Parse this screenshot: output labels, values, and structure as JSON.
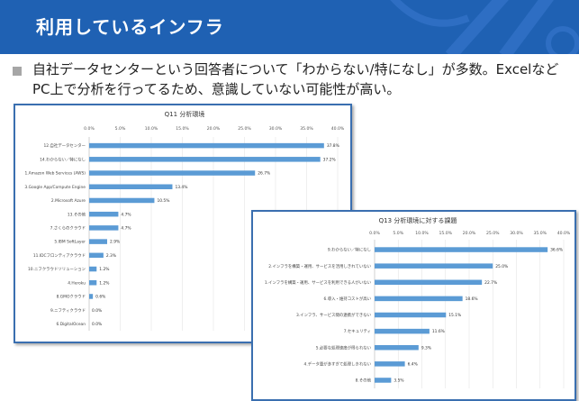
{
  "header": {
    "title": "利用しているインフラ"
  },
  "body": {
    "text": "自社データセンターという回答者について「わからない/特になし」が多数。ExcelなどPC上で分析を行ってるため、意識していない可能性が高い。"
  },
  "colors": {
    "header_bg": "#1f61b3",
    "bar": "#5b9bd5",
    "panel_border": "#3a6fb0"
  },
  "chart_data": [
    {
      "type": "bar",
      "orientation": "horizontal",
      "title": "Q11 分析環境",
      "xlim": [
        0,
        40
      ],
      "ticks": [
        "0.0%",
        "5.0%",
        "10.0%",
        "15.0%",
        "20.0%",
        "25.0%",
        "30.0%",
        "35.0%",
        "40.0%"
      ],
      "categories": [
        "12.自社データセンター",
        "14.わからない／特になし",
        "1.Amazon Web Services (AWS)",
        "3.Google App/Compute Engine",
        "2.Microsoft Azure",
        "13.その他",
        "7.さくらのクラウド",
        "5.IBM SoftLayer",
        "11.IDCフロンティアクラウド",
        "10.ニフクラウドソリューション",
        "4.Heroku",
        "8.GMOクラウド",
        "9.ニフティクラウド",
        "6.DigitalOcean"
      ],
      "values": [
        37.8,
        37.2,
        26.7,
        13.4,
        10.5,
        4.7,
        4.7,
        2.9,
        2.3,
        1.2,
        1.2,
        0.6,
        0.0,
        0.0
      ],
      "labels": [
        "37.8%",
        "37.2%",
        "26.7%",
        "13.4%",
        "10.5%",
        "4.7%",
        "4.7%",
        "2.9%",
        "2.3%",
        "1.2%",
        "1.2%",
        "0.6%",
        "0.0%",
        "0.0%"
      ]
    },
    {
      "type": "bar",
      "orientation": "horizontal",
      "title": "Q13 分析環境に対する課題",
      "xlim": [
        0,
        40
      ],
      "ticks": [
        "0.0%",
        "5.0%",
        "10.0%",
        "15.0%",
        "20.0%",
        "25.0%",
        "30.0%",
        "35.0%",
        "40.0%"
      ],
      "categories": [
        "9.わからない／特になし",
        "2.インフラを構築・運用、サービスを活用しきれていない",
        "1.インフラを構築・運用、サービスを利用できる人がいない",
        "6.導入・維持コストが高い",
        "3.インフラ、サービス間の連携ができない",
        "7.セキュリティ",
        "5.必要な処理速度が得られない",
        "4.データ量が多すぎて処理しきれない",
        "8.その他"
      ],
      "values": [
        36.6,
        25.0,
        22.7,
        18.6,
        15.1,
        11.6,
        9.3,
        6.4,
        3.5
      ],
      "labels": [
        "36.6%",
        "25.0%",
        "22.7%",
        "18.6%",
        "15.1%",
        "11.6%",
        "9.3%",
        "6.4%",
        "3.5%"
      ]
    }
  ]
}
